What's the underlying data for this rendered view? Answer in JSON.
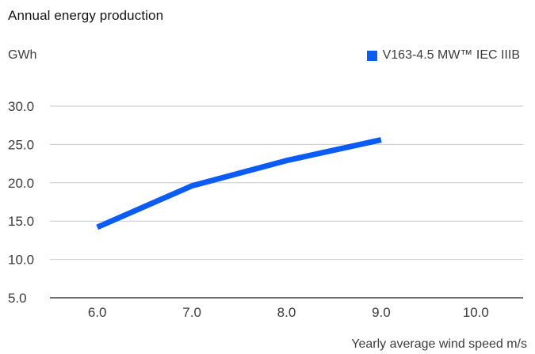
{
  "chart_data": {
    "type": "line",
    "title": "Annual energy production",
    "ylabel": "GWh",
    "xlabel": "Yearly average wind speed m/s",
    "x": [
      6.0,
      7.0,
      8.0,
      9.0
    ],
    "series": [
      {
        "name": "V163-4.5 MW™ IEC IIIB",
        "values": [
          14.2,
          19.6,
          22.9,
          25.6
        ],
        "color": "#0b5cf5"
      }
    ],
    "xticks": [
      "6.0",
      "7.0",
      "8.0",
      "9.0",
      "10.0"
    ],
    "yticks": [
      "5.0",
      "10.0",
      "15.0",
      "20.0",
      "25.0",
      "30.0"
    ],
    "xlim": [
      5.5,
      10.5
    ],
    "ylim": [
      5.0,
      30.0
    ],
    "grid": true,
    "legend_position": "top-right"
  }
}
